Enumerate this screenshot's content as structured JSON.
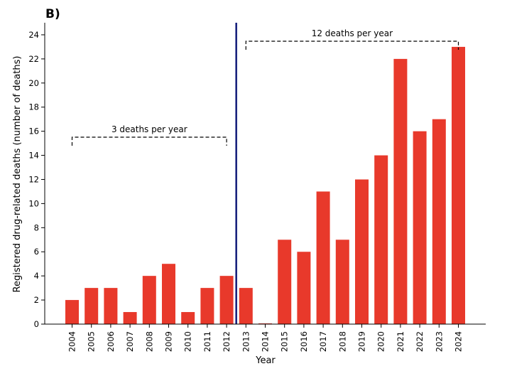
{
  "chart_data": {
    "type": "bar",
    "panel_label": "B)",
    "title": "",
    "xlabel": "Year",
    "ylabel": "Registered drug-related deaths (number of deaths)",
    "categories": [
      "2004",
      "2005",
      "2006",
      "2007",
      "2008",
      "2009",
      "2010",
      "2011",
      "2012",
      "2013",
      "2014",
      "2015",
      "2016",
      "2017",
      "2018",
      "2019",
      "2020",
      "2021",
      "2022",
      "2023",
      "2024"
    ],
    "values": [
      2,
      3,
      3,
      1,
      4,
      5,
      1,
      3,
      4,
      3,
      0,
      7,
      6,
      11,
      7,
      12,
      14,
      22,
      16,
      17,
      23
    ],
    "ylim": [
      0,
      25
    ],
    "yticks": [
      0,
      2,
      4,
      6,
      8,
      10,
      12,
      14,
      16,
      18,
      20,
      22,
      24
    ],
    "bar_color": "#e8392b",
    "divider": {
      "after_category": "2012",
      "color": "#1a237e"
    },
    "annotations": [
      {
        "text": "3 deaths per year",
        "from": "2004",
        "to": "2012"
      },
      {
        "text": "12 deaths per year",
        "from": "2013",
        "to": "2024"
      }
    ],
    "grid": false,
    "legend": "none"
  }
}
